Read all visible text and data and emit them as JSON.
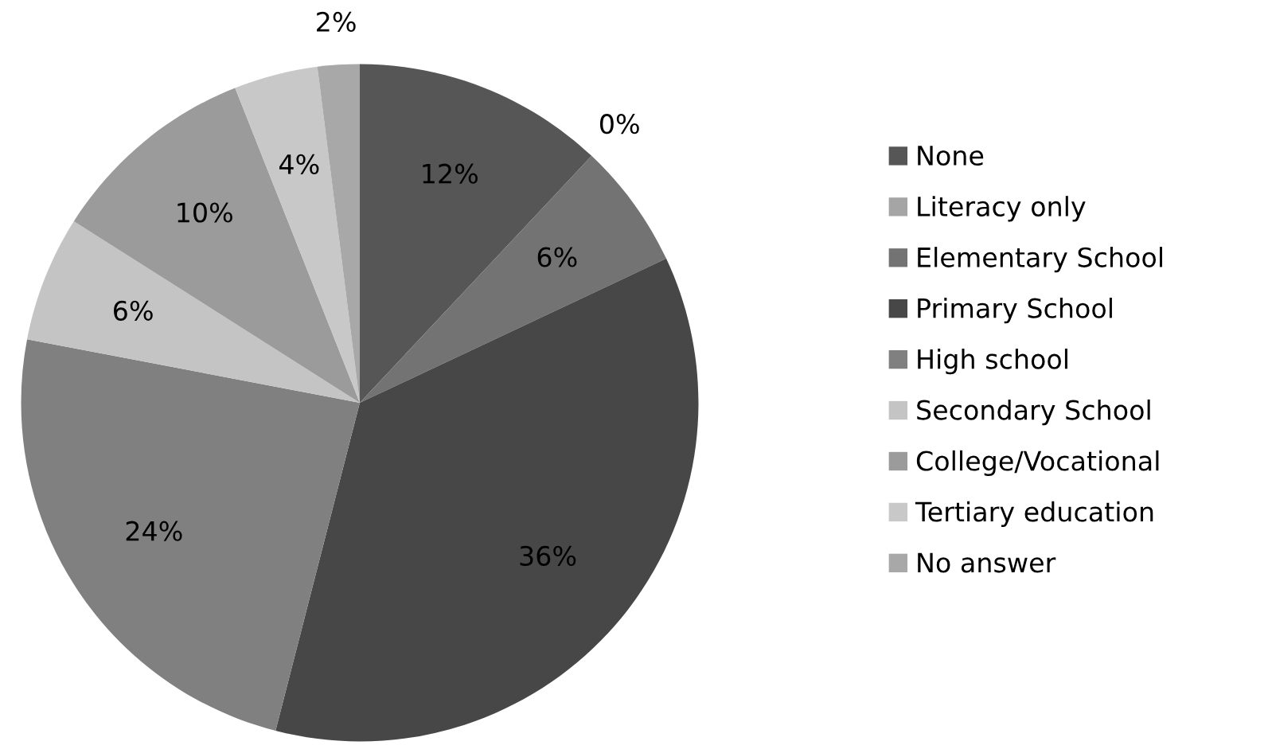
{
  "chart_data": {
    "type": "pie",
    "categories": [
      "None",
      "Literacy only",
      "Elementary School",
      "Primary School",
      "High school",
      "Secondary School",
      "College/Vocational",
      "Tertiary education",
      "No answer"
    ],
    "values": [
      12,
      0,
      6,
      36,
      24,
      6,
      10,
      4,
      2
    ],
    "colors": [
      "#565656",
      "#a5a5a5",
      "#737373",
      "#474747",
      "#808080",
      "#c4c4c4",
      "#9b9b9b",
      "#c8c8c8",
      "#a8a8a8"
    ],
    "value_labels": [
      "12%",
      "0%",
      "6%",
      "36%",
      "24%",
      "6%",
      "10%",
      "4%",
      "2%"
    ],
    "legend": "right"
  }
}
